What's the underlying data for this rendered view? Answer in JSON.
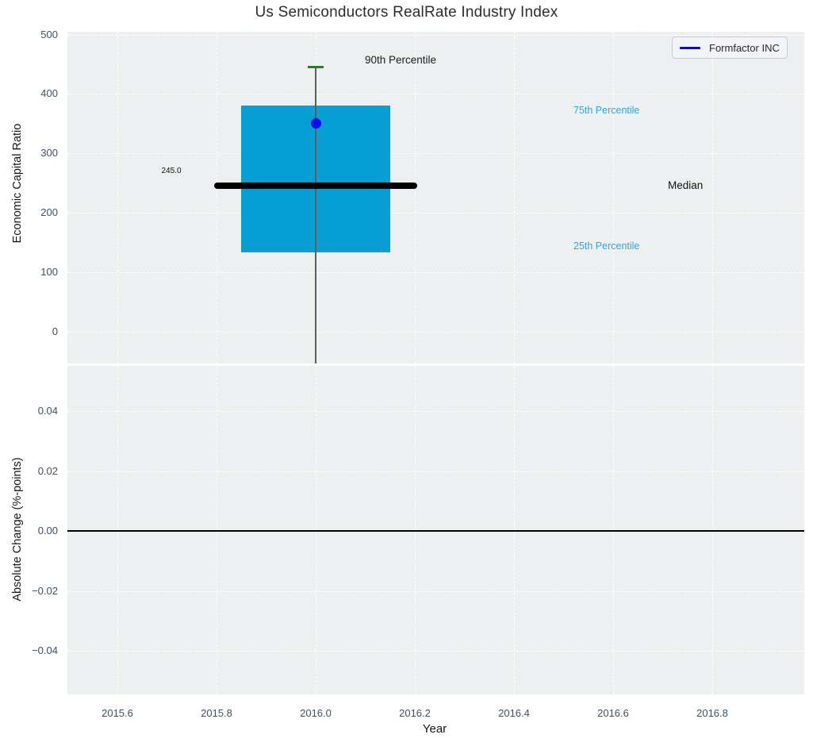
{
  "title": "Us Semiconductors RealRate Industry Index",
  "legend": {
    "label": "Formfactor INC"
  },
  "colors": {
    "plot_bg": "#ecf0f1",
    "grid": "#ffffff",
    "box_fill": "#089fd4",
    "median_line": "#000000",
    "whisker": "#5d5d5d",
    "whisker_cap_green": "#0f8f0f",
    "company_dot_blue": "#0d0dee",
    "legend_line_blue": "#0404f2",
    "percentile_label_blue": "#2ba7dc",
    "tick_text": "#3e5064",
    "zero_line": "#000000"
  },
  "top_plot": {
    "ylabel": "Economic Capital Ratio",
    "annotations": {
      "p90_label": "90th Percentile",
      "p75_label": "75th Percentile",
      "median_label": "Median",
      "p25_label": "25th Percentile",
      "median_value_label": "245.0"
    }
  },
  "bottom_plot": {
    "ylabel": "Absolute Change (%-points)"
  },
  "x_axis": {
    "label": "Year"
  },
  "chart_data": [
    {
      "type": "boxplot",
      "title": "Us Semiconductors RealRate Industry Index",
      "xlabel": "Year",
      "ylabel": "Economic Capital Ratio",
      "x": 2016.0,
      "box": {
        "p90_whisker_top": 446,
        "q3_75th_percentile": 380,
        "median": 245.0,
        "q1_25th_percentile": 134,
        "lower_whisker": "extends below axis (clipped at plot bottom)"
      },
      "box_halfwidth_years": 0.15,
      "median_band_halfwidth_years": 0.205,
      "series": [
        {
          "name": "Formfactor INC",
          "marker": "circle",
          "color": "blue",
          "points": [
            [
              2016.0,
              350
            ]
          ]
        }
      ],
      "annotations": [
        "90th Percentile",
        "75th Percentile",
        "Median",
        "25th Percentile",
        "245.0"
      ],
      "xlim": [
        2015.5,
        2016.99
      ],
      "ylim": [
        -53,
        505
      ],
      "yticks": [
        {
          "v": 500,
          "label": "500"
        },
        {
          "v": 400,
          "label": "400"
        },
        {
          "v": 300,
          "label": "300"
        },
        {
          "v": 200,
          "label": "200"
        },
        {
          "v": 100,
          "label": "100"
        },
        {
          "v": 0,
          "label": "0"
        }
      ],
      "grid": "white dashed on light grey, legend upper right"
    },
    {
      "type": "line",
      "xlabel": "Year",
      "ylabel": "Absolute Change (%-points)",
      "series": [],
      "zero_line_y": 0.0,
      "xlim": [
        2015.5,
        2016.99
      ],
      "ylim": [
        -0.055,
        0.055
      ],
      "yticks": [
        {
          "v": 0.04,
          "label": "0.04"
        },
        {
          "v": 0.02,
          "label": "0.02"
        },
        {
          "v": 0,
          "label": "0.00"
        },
        {
          "v": -0.02,
          "label": "−0.02"
        },
        {
          "v": -0.04,
          "label": "−0.04"
        }
      ],
      "xticks": [
        {
          "v": 2015.6,
          "label": "2015.6"
        },
        {
          "v": 2015.8,
          "label": "2015.8"
        },
        {
          "v": 2016.0,
          "label": "2016.0"
        },
        {
          "v": 2016.2,
          "label": "2016.2"
        },
        {
          "v": 2016.4,
          "label": "2016.4"
        },
        {
          "v": 2016.6,
          "label": "2016.6"
        },
        {
          "v": 2016.8,
          "label": "2016.8"
        }
      ]
    }
  ]
}
